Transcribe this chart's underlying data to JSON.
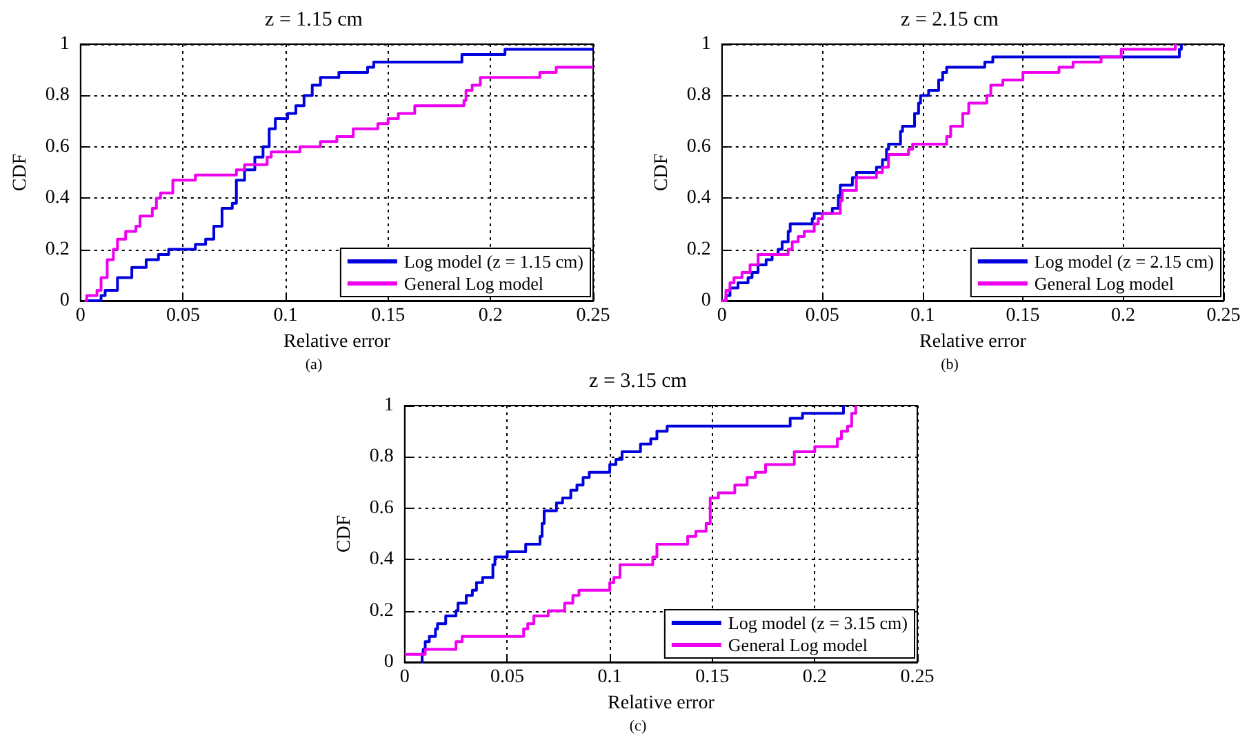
{
  "chart_data": [
    {
      "type": "step",
      "title": "z = 1.15 cm",
      "xlabel": "Relative error",
      "ylabel": "CDF",
      "annotations": [
        "(a)"
      ],
      "xlim": [
        0,
        0.25
      ],
      "xticks": [
        0,
        0.05,
        0.1,
        0.15,
        0.2,
        0.25
      ],
      "ylim": [
        0,
        1
      ],
      "yticks": [
        0,
        0.2,
        0.4,
        0.6,
        0.8,
        1
      ],
      "grid": true,
      "legend": "bottom right",
      "line_style": "solid",
      "marker": "none",
      "series": [
        {
          "name": "Log model (z = 1.15 cm)",
          "color": "#0000dd",
          "x": [
            0.003,
            0.01,
            0.012,
            0.018,
            0.025,
            0.032,
            0.038,
            0.043,
            0.056,
            0.061,
            0.065,
            0.069,
            0.074,
            0.076,
            0.08,
            0.085,
            0.089,
            0.092,
            0.095,
            0.101,
            0.105,
            0.109,
            0.113,
            0.117,
            0.126,
            0.14,
            0.143,
            0.186,
            0.207,
            0.25
          ],
          "values": [
            0,
            0.02,
            0.04,
            0.09,
            0.13,
            0.16,
            0.18,
            0.2,
            0.22,
            0.24,
            0.29,
            0.36,
            0.38,
            0.47,
            0.51,
            0.56,
            0.6,
            0.67,
            0.71,
            0.73,
            0.76,
            0.8,
            0.84,
            0.87,
            0.89,
            0.91,
            0.93,
            0.96,
            0.98,
            0.98
          ]
        },
        {
          "name": "General Log model",
          "color": "#ee00ee",
          "x": [
            0.002,
            0.003,
            0.008,
            0.01,
            0.013,
            0.016,
            0.018,
            0.022,
            0.027,
            0.029,
            0.035,
            0.037,
            0.039,
            0.045,
            0.056,
            0.076,
            0.08,
            0.091,
            0.093,
            0.107,
            0.117,
            0.125,
            0.133,
            0.145,
            0.15,
            0.155,
            0.163,
            0.187,
            0.188,
            0.191,
            0.195,
            0.224,
            0.232,
            0.25
          ],
          "values": [
            0,
            0.02,
            0.04,
            0.09,
            0.16,
            0.2,
            0.24,
            0.27,
            0.29,
            0.33,
            0.36,
            0.4,
            0.42,
            0.47,
            0.49,
            0.51,
            0.53,
            0.56,
            0.58,
            0.6,
            0.62,
            0.64,
            0.67,
            0.69,
            0.71,
            0.73,
            0.76,
            0.78,
            0.82,
            0.84,
            0.87,
            0.89,
            0.91,
            0.91
          ]
        }
      ]
    },
    {
      "type": "step",
      "title": "z = 2.15 cm",
      "xlabel": "Relative error",
      "ylabel": "CDF",
      "annotations": [
        "(b)"
      ],
      "xlim": [
        0,
        0.25
      ],
      "xticks": [
        0,
        0.05,
        0.1,
        0.15,
        0.2,
        0.25
      ],
      "ylim": [
        0,
        1
      ],
      "yticks": [
        0,
        0.2,
        0.4,
        0.6,
        0.8,
        1
      ],
      "grid": true,
      "legend": "bottom right",
      "line_style": "solid",
      "marker": "none",
      "series": [
        {
          "name": "Log model (z = 2.15 cm)",
          "color": "#0000dd",
          "x": [
            0,
            0.002,
            0.004,
            0.008,
            0.013,
            0.015,
            0.018,
            0.022,
            0.025,
            0.028,
            0.03,
            0.033,
            0.034,
            0.045,
            0.046,
            0.055,
            0.058,
            0.059,
            0.065,
            0.067,
            0.077,
            0.08,
            0.082,
            0.083,
            0.089,
            0.09,
            0.096,
            0.098,
            0.099,
            0.103,
            0.108,
            0.11,
            0.112,
            0.131,
            0.135,
            0.228,
            0.229
          ],
          "values": [
            0,
            0.02,
            0.05,
            0.07,
            0.09,
            0.11,
            0.14,
            0.16,
            0.18,
            0.2,
            0.23,
            0.27,
            0.3,
            0.32,
            0.34,
            0.36,
            0.41,
            0.45,
            0.48,
            0.5,
            0.52,
            0.55,
            0.59,
            0.61,
            0.66,
            0.68,
            0.73,
            0.77,
            0.8,
            0.82,
            0.86,
            0.89,
            0.91,
            0.93,
            0.95,
            0.98,
            1
          ]
        },
        {
          "name": "General Log model",
          "color": "#ee00ee",
          "x": [
            0,
            0.002,
            0.004,
            0.006,
            0.01,
            0.014,
            0.018,
            0.033,
            0.035,
            0.038,
            0.041,
            0.046,
            0.048,
            0.05,
            0.059,
            0.06,
            0.067,
            0.077,
            0.08,
            0.083,
            0.093,
            0.095,
            0.112,
            0.114,
            0.12,
            0.123,
            0.132,
            0.134,
            0.14,
            0.15,
            0.168,
            0.175,
            0.189,
            0.199,
            0.226
          ],
          "values": [
            0,
            0.04,
            0.07,
            0.09,
            0.11,
            0.14,
            0.18,
            0.2,
            0.23,
            0.25,
            0.27,
            0.3,
            0.32,
            0.34,
            0.39,
            0.43,
            0.48,
            0.5,
            0.52,
            0.57,
            0.59,
            0.61,
            0.64,
            0.68,
            0.73,
            0.77,
            0.8,
            0.84,
            0.86,
            0.89,
            0.91,
            0.93,
            0.95,
            0.98,
            1
          ]
        }
      ]
    },
    {
      "type": "step",
      "title": "z = 3.15 cm",
      "xlabel": "Relative error",
      "ylabel": "CDF",
      "annotations": [
        "(c)"
      ],
      "xlim": [
        0,
        0.25
      ],
      "xticks": [
        0,
        0.05,
        0.1,
        0.15,
        0.2,
        0.25
      ],
      "ylim": [
        0,
        1
      ],
      "yticks": [
        0,
        0.2,
        0.4,
        0.6,
        0.8,
        1
      ],
      "grid": true,
      "legend": "bottom right",
      "line_style": "solid",
      "marker": "none",
      "series": [
        {
          "name": "Log model (z = 3.15 cm)",
          "color": "#0000dd",
          "x": [
            0.008,
            0.0085,
            0.009,
            0.01,
            0.012,
            0.015,
            0.016,
            0.02,
            0.025,
            0.026,
            0.03,
            0.033,
            0.035,
            0.038,
            0.043,
            0.044,
            0.05,
            0.059,
            0.066,
            0.067,
            0.068,
            0.074,
            0.077,
            0.081,
            0.084,
            0.087,
            0.09,
            0.1,
            0.103,
            0.106,
            0.115,
            0.12,
            0.123,
            0.128,
            0.188,
            0.194,
            0.214
          ],
          "values": [
            0,
            0.03,
            0.05,
            0.08,
            0.1,
            0.13,
            0.15,
            0.18,
            0.2,
            0.23,
            0.26,
            0.28,
            0.31,
            0.33,
            0.38,
            0.41,
            0.43,
            0.46,
            0.49,
            0.54,
            0.59,
            0.62,
            0.64,
            0.67,
            0.69,
            0.72,
            0.74,
            0.77,
            0.79,
            0.82,
            0.85,
            0.87,
            0.9,
            0.92,
            0.95,
            0.97,
            1
          ]
        },
        {
          "name": "General Log model",
          "color": "#ee00ee",
          "x": [
            0,
            0.01,
            0.025,
            0.028,
            0.058,
            0.06,
            0.063,
            0.07,
            0.078,
            0.082,
            0.085,
            0.1,
            0.102,
            0.105,
            0.121,
            0.123,
            0.138,
            0.142,
            0.147,
            0.149,
            0.153,
            0.161,
            0.167,
            0.171,
            0.176,
            0.19,
            0.2,
            0.211,
            0.213,
            0.216,
            0.218,
            0.22
          ],
          "values": [
            0.03,
            0.05,
            0.08,
            0.1,
            0.13,
            0.15,
            0.18,
            0.2,
            0.23,
            0.26,
            0.28,
            0.31,
            0.33,
            0.38,
            0.41,
            0.46,
            0.49,
            0.51,
            0.54,
            0.64,
            0.66,
            0.69,
            0.72,
            0.74,
            0.77,
            0.82,
            0.84,
            0.87,
            0.9,
            0.92,
            0.97,
            1
          ]
        }
      ]
    }
  ]
}
